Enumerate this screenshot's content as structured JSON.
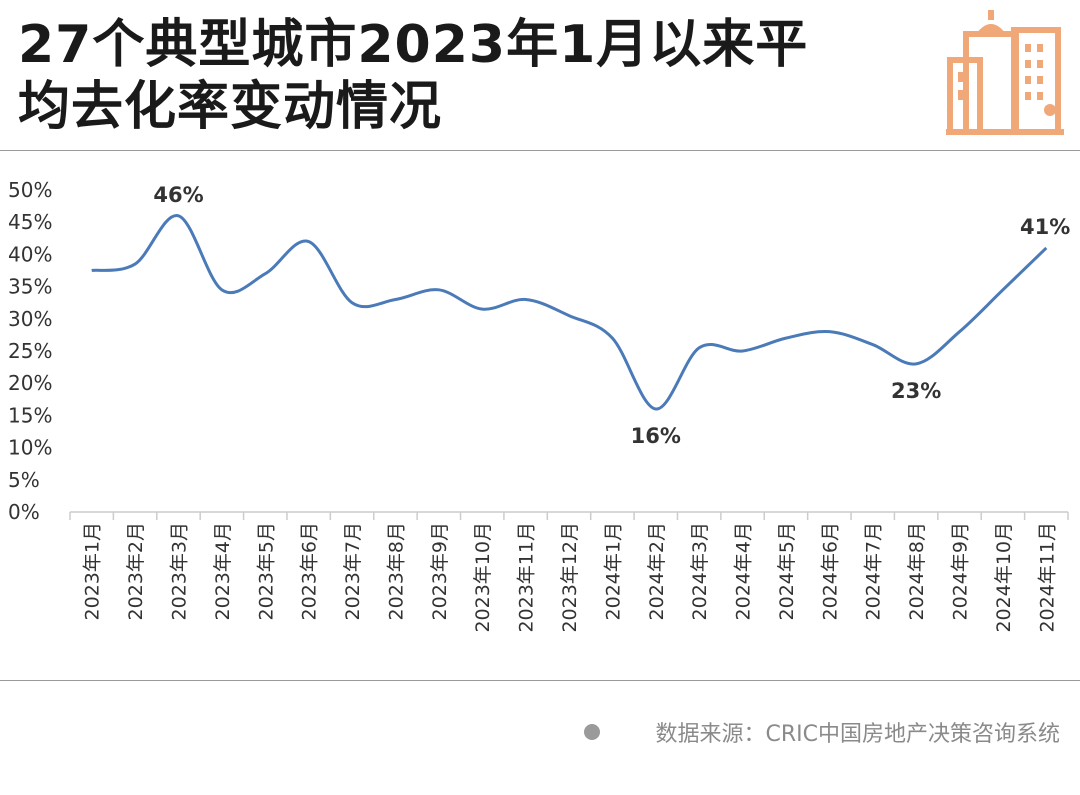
{
  "title": {
    "line1": "27个典型城市2023年1月以来平",
    "line2": "均去化率变动情况"
  },
  "source": {
    "text": "数据来源：CRIC中国房地产决策咨询系统"
  },
  "colors": {
    "line": "#4a7ab8",
    "logo": "#f0a878",
    "axis": "#cccccc",
    "text": "#333333"
  },
  "icons": {
    "logo": "buildings-icon",
    "source_bullet": "dot-icon"
  },
  "chart_data": {
    "type": "line",
    "title": "27个典型城市2023年1月以来平均去化率变动情况",
    "categories": [
      "2023年1月",
      "2023年2月",
      "2023年3月",
      "2023年4月",
      "2023年5月",
      "2023年6月",
      "2023年7月",
      "2023年8月",
      "2023年9月",
      "2023年10月",
      "2023年11月",
      "2023年12月",
      "2024年1月",
      "2024年2月",
      "2024年3月",
      "2024年4月",
      "2024年5月",
      "2024年6月",
      "2024年7月",
      "2024年8月",
      "2024年9月",
      "2024年10月",
      "2024年11月"
    ],
    "values": [
      37.5,
      38.5,
      46,
      34.5,
      37,
      42,
      32.5,
      33,
      34.5,
      31.5,
      33,
      30.5,
      27,
      16,
      25.5,
      25,
      27,
      28,
      26,
      23,
      28,
      34.5,
      41
    ],
    "data_labels": [
      {
        "index": 2,
        "text": "46%"
      },
      {
        "index": 13,
        "text": "16%"
      },
      {
        "index": 19,
        "text": "23%"
      },
      {
        "index": 22,
        "text": "41%"
      }
    ],
    "y_ticks": [
      "0%",
      "5%",
      "10%",
      "15%",
      "20%",
      "25%",
      "30%",
      "35%",
      "40%",
      "45%",
      "50%"
    ],
    "ylim": [
      0,
      50
    ],
    "grid": false,
    "legend": "none"
  }
}
